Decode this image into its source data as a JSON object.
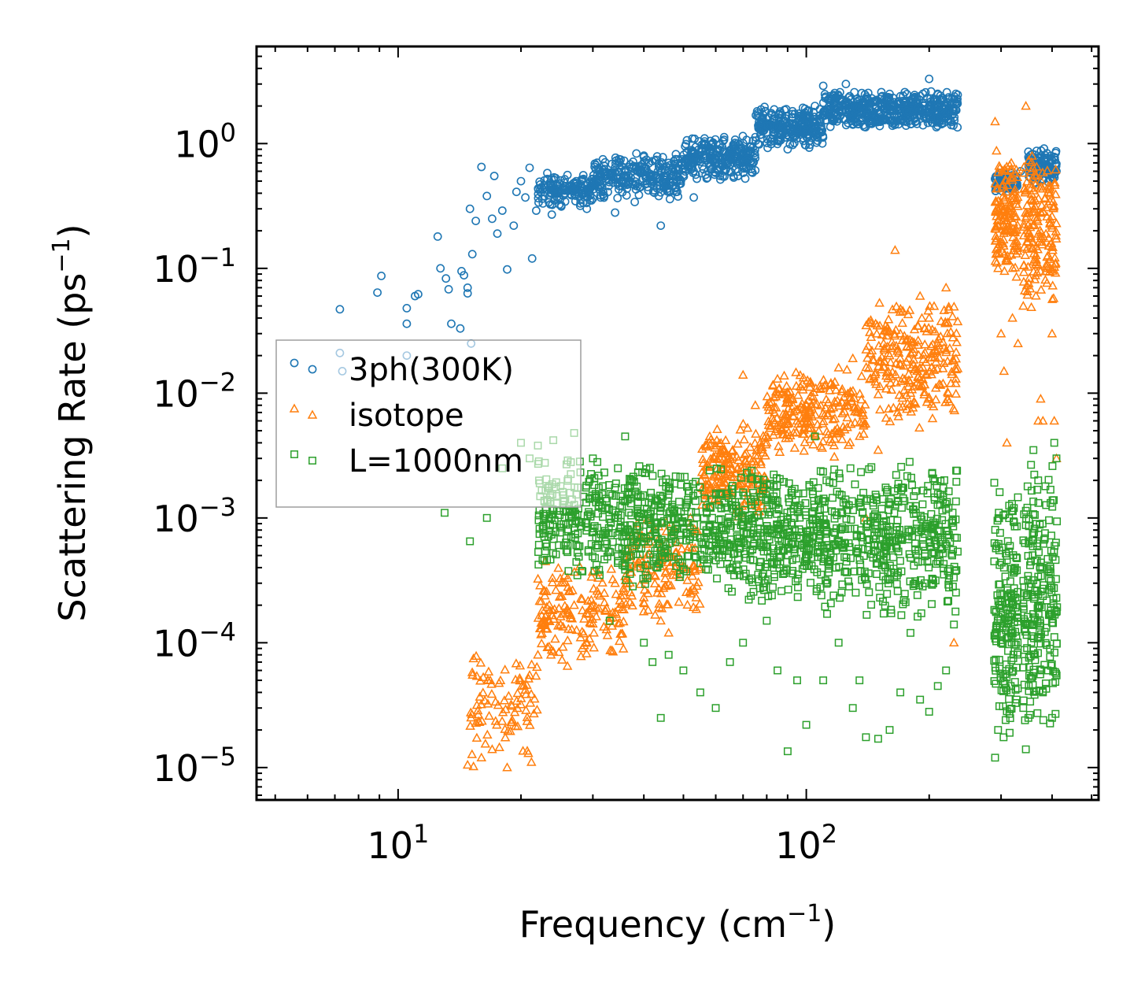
{
  "chart_data": {
    "type": "scatter",
    "title": "",
    "xlabel": {
      "text": "Frequency (cm",
      "sup": "−1",
      "tail": ")"
    },
    "ylabel": {
      "text": "Scattering Rate (ps",
      "sup": "−1",
      "tail": ")"
    },
    "xscale": "log",
    "yscale": "log",
    "xlim": [
      4.5,
      520
    ],
    "ylim": [
      5.5e-06,
      6.0
    ],
    "xticks": [
      {
        "value": 10,
        "base": "10",
        "exp": "1"
      },
      {
        "value": 100,
        "base": "10",
        "exp": "2"
      }
    ],
    "yticks": [
      {
        "value": 1e-05,
        "base": "10",
        "exp": "−5"
      },
      {
        "value": 0.0001,
        "base": "10",
        "exp": "−4"
      },
      {
        "value": 0.001,
        "base": "10",
        "exp": "−3"
      },
      {
        "value": 0.01,
        "base": "10",
        "exp": "−2"
      },
      {
        "value": 0.1,
        "base": "10",
        "exp": "−1"
      },
      {
        "value": 1,
        "base": "10",
        "exp": "0"
      }
    ],
    "legend": {
      "position": "center-left"
    },
    "series": [
      {
        "name": "3ph(300K)",
        "marker": "circle",
        "color": "#1f77b4",
        "points": [
          [
            7.2,
            0.047
          ],
          [
            7.2,
            0.021
          ],
          [
            7.3,
            0.015
          ],
          [
            8.9,
            0.064
          ],
          [
            9.1,
            0.087
          ],
          [
            10.5,
            0.048
          ],
          [
            10.5,
            0.036
          ],
          [
            10.5,
            0.02
          ],
          [
            11.2,
            0.062
          ],
          [
            11.0,
            0.06
          ],
          [
            12.5,
            0.18
          ],
          [
            12.7,
            0.1
          ],
          [
            13.1,
            0.083
          ],
          [
            13.3,
            0.068
          ],
          [
            13.5,
            0.036
          ],
          [
            14.3,
            0.095
          ],
          [
            14.5,
            0.088
          ],
          [
            14.8,
            0.07
          ],
          [
            14.2,
            0.033
          ],
          [
            15.0,
            0.3
          ],
          [
            15.2,
            0.13
          ],
          [
            14.8,
            0.063
          ],
          [
            15.1,
            0.025
          ],
          [
            15.5,
            0.24
          ],
          [
            16.0,
            0.65
          ],
          [
            16.5,
            0.38
          ],
          [
            17.0,
            0.25
          ],
          [
            17.2,
            0.55
          ],
          [
            17.5,
            0.19
          ],
          [
            18.0,
            0.29
          ],
          [
            18.5,
            0.098
          ],
          [
            19.2,
            0.22
          ],
          [
            19.5,
            0.41
          ],
          [
            20.0,
            0.5
          ],
          [
            20.5,
            0.37
          ],
          [
            21.0,
            0.64
          ],
          [
            21.3,
            0.12
          ],
          [
            21.8,
            0.29
          ],
          [
            22.3,
            0.47
          ],
          [
            22.8,
            0.38
          ],
          [
            23.2,
            0.58
          ],
          [
            23.8,
            0.27
          ],
          [
            24.5,
            0.47
          ],
          [
            25.1,
            0.32
          ],
          [
            26.0,
            0.56
          ],
          [
            27.5,
            0.44
          ],
          [
            29.0,
            0.3
          ],
          [
            30.5,
            0.62
          ],
          [
            32.0,
            0.38
          ],
          [
            34.0,
            0.28
          ],
          [
            36.0,
            0.55
          ],
          [
            38.0,
            0.34
          ],
          [
            40.0,
            0.8
          ],
          [
            42.0,
            0.5
          ],
          [
            44.0,
            0.22
          ],
          [
            46.0,
            0.7
          ],
          [
            48.0,
            0.44
          ],
          [
            50.0,
            0.63
          ],
          [
            53.0,
            0.37
          ],
          [
            56.0,
            0.62
          ],
          [
            59.0,
            1.0
          ],
          [
            62.0,
            0.7
          ],
          [
            65.0,
            0.81
          ],
          [
            68.0,
            0.55
          ],
          [
            71.0,
            0.78
          ],
          [
            75.0,
            0.61
          ],
          [
            78.0,
            1.1
          ],
          [
            82.0,
            0.99
          ],
          [
            86.0,
            1.23
          ],
          [
            90.0,
            0.9
          ],
          [
            95.0,
            1.32
          ],
          [
            100.0,
            1.5
          ],
          [
            105.0,
            2.0
          ],
          [
            110.0,
            2.9
          ],
          [
            115.0,
            2.3
          ],
          [
            120.0,
            2.4
          ],
          [
            125.0,
            3.0
          ],
          [
            130.0,
            2.0
          ],
          [
            140.0,
            1.7
          ],
          [
            150.0,
            1.85
          ],
          [
            160.0,
            2.5
          ],
          [
            170.0,
            2.1
          ],
          [
            180.0,
            1.8
          ],
          [
            190.0,
            2.4
          ],
          [
            200.0,
            3.3
          ],
          [
            210.0,
            1.6
          ],
          [
            220.0,
            2.0
          ],
          [
            230.0,
            1.85
          ],
          [
            290.0,
            0.52
          ],
          [
            300.0,
            0.52
          ],
          [
            310.0,
            0.55
          ],
          [
            325.0,
            0.48
          ],
          [
            335.0,
            0.6
          ],
          [
            350.0,
            0.86
          ],
          [
            365.0,
            0.7
          ],
          [
            380.0,
            0.52
          ],
          [
            395.0,
            0.62
          ],
          [
            410.0,
            0.6
          ]
        ],
        "bands": [
          {
            "x": [
              22,
              30
            ],
            "y": [
              0.3,
              0.6
            ],
            "n": 140
          },
          {
            "x": [
              30,
              50
            ],
            "y": [
              0.35,
              0.85
            ],
            "n": 260
          },
          {
            "x": [
              50,
              75
            ],
            "y": [
              0.5,
              1.2
            ],
            "n": 240
          },
          {
            "x": [
              75,
              110
            ],
            "y": [
              0.9,
              2.0
            ],
            "n": 260
          },
          {
            "x": [
              110,
              160
            ],
            "y": [
              1.3,
              2.7
            ],
            "n": 260
          },
          {
            "x": [
              160,
              235
            ],
            "y": [
              1.3,
              2.7
            ],
            "n": 260
          },
          {
            "x": [
              290,
              330
            ],
            "y": [
              0.4,
              0.6
            ],
            "n": 90
          },
          {
            "x": [
              350,
              410
            ],
            "y": [
              0.45,
              0.95
            ],
            "n": 110
          }
        ]
      },
      {
        "name": "isotope",
        "marker": "triangle",
        "color": "#ff7f0e",
        "points": [
          [
            14.8,
            1.05e-05
          ],
          [
            15.3,
            1.02e-05
          ],
          [
            16.0,
            1.2e-05
          ],
          [
            17.0,
            1.4e-05
          ],
          [
            18.5,
            1e-05
          ],
          [
            19.0,
            2.3e-05
          ],
          [
            20.0,
            3.2e-05
          ],
          [
            21.0,
            5.5e-05
          ],
          [
            22.0,
            8e-05
          ],
          [
            23.0,
            0.00013
          ],
          [
            24.0,
            8.5e-05
          ],
          [
            25.0,
            0.00014
          ],
          [
            26.0,
            6.5e-05
          ],
          [
            27.0,
            0.0002
          ],
          [
            28.0,
            0.00011
          ],
          [
            30.0,
            0.0002
          ],
          [
            32.0,
            0.00025
          ],
          [
            34.0,
            0.0003
          ],
          [
            36.0,
            0.00048
          ],
          [
            40.0,
            0.00023
          ],
          [
            44.0,
            0.00015
          ],
          [
            46.0,
            0.00012
          ],
          [
            48.0,
            0.00035
          ],
          [
            52.0,
            0.001
          ],
          [
            55.0,
            0.0004
          ],
          [
            58.0,
            0.0045
          ],
          [
            62.0,
            0.0025
          ],
          [
            66.0,
            0.0035
          ],
          [
            70.0,
            0.014
          ],
          [
            75.0,
            0.008
          ],
          [
            80.0,
            0.004
          ],
          [
            85.0,
            0.013
          ],
          [
            90.0,
            0.009
          ],
          [
            95.0,
            0.006
          ],
          [
            100.0,
            0.008
          ],
          [
            110.0,
            0.011
          ],
          [
            120.0,
            0.016
          ],
          [
            130.0,
            0.019
          ],
          [
            140.0,
            0.001
          ],
          [
            150.0,
            0.0035
          ],
          [
            160.0,
            0.02
          ],
          [
            165.0,
            0.14
          ],
          [
            170.0,
            0.03
          ],
          [
            180.0,
            0.01
          ],
          [
            190.0,
            0.06
          ],
          [
            200.0,
            0.04
          ],
          [
            210.0,
            0.025
          ],
          [
            220.0,
            0.07
          ],
          [
            230.0,
            0.0001
          ],
          [
            290.0,
            1.5
          ],
          [
            295.0,
            0.1
          ],
          [
            300.0,
            0.03
          ],
          [
            305.0,
            0.015
          ],
          [
            310.0,
            0.004
          ],
          [
            320.0,
            0.04
          ],
          [
            330.0,
            0.025
          ],
          [
            340.0,
            0.05
          ],
          [
            345.0,
            2.0
          ],
          [
            355.0,
            0.6
          ],
          [
            360.0,
            0.3
          ],
          [
            370.0,
            0.006
          ],
          [
            375.0,
            0.009
          ],
          [
            380.0,
            0.006
          ],
          [
            390.0,
            0.1
          ],
          [
            400.0,
            0.03
          ],
          [
            405.0,
            0.006
          ],
          [
            410.0,
            0.003
          ]
        ],
        "bands": [
          {
            "x": [
              15,
              22
            ],
            "y": [
              1e-05,
              0.0001
            ],
            "n": 90
          },
          {
            "x": [
              22,
              36
            ],
            "y": [
              6e-05,
              0.0005
            ],
            "n": 160
          },
          {
            "x": [
              36,
              55
            ],
            "y": [
              0.00015,
              0.001
            ],
            "n": 140
          },
          {
            "x": [
              55,
              80
            ],
            "y": [
              0.001,
              0.006
            ],
            "n": 200
          },
          {
            "x": [
              80,
              140
            ],
            "y": [
              0.003,
              0.016
            ],
            "n": 240
          },
          {
            "x": [
              140,
              235
            ],
            "y": [
              0.005,
              0.06
            ],
            "n": 260
          },
          {
            "x": [
              290,
              330
            ],
            "y": [
              0.08,
              0.9
            ],
            "n": 140
          },
          {
            "x": [
              340,
              410
            ],
            "y": [
              0.04,
              0.9
            ],
            "n": 170
          }
        ]
      },
      {
        "name": "L=1000nm",
        "marker": "square",
        "color": "#2ca02c",
        "points": [
          [
            13.0,
            0.0011
          ],
          [
            15.0,
            0.00065
          ],
          [
            16.5,
            0.001
          ],
          [
            18.0,
            0.0025
          ],
          [
            20.0,
            0.004
          ],
          [
            21.0,
            0.003
          ],
          [
            22.0,
            0.0038
          ],
          [
            24.0,
            0.0042
          ],
          [
            25.0,
            0.0018
          ],
          [
            27.0,
            0.0048
          ],
          [
            30.0,
            0.003
          ],
          [
            33.0,
            0.00015
          ],
          [
            36.0,
            0.0045
          ],
          [
            40.0,
            0.0001
          ],
          [
            42.0,
            7e-05
          ],
          [
            44.0,
            2.5e-05
          ],
          [
            46.0,
            8e-05
          ],
          [
            50.0,
            6e-05
          ],
          [
            55.0,
            4e-05
          ],
          [
            60.0,
            3e-05
          ],
          [
            65.0,
            7e-05
          ],
          [
            70.0,
            0.0001
          ],
          [
            80.0,
            0.00015
          ],
          [
            85.0,
            6e-05
          ],
          [
            90.0,
            1.35e-05
          ],
          [
            95.0,
            5e-05
          ],
          [
            100.0,
            2.2e-05
          ],
          [
            105.0,
            0.0045
          ],
          [
            110.0,
            5e-05
          ],
          [
            120.0,
            0.0001
          ],
          [
            130.0,
            3e-05
          ],
          [
            135.0,
            5e-05
          ],
          [
            140.0,
            1.75e-05
          ],
          [
            150.0,
            1.7e-05
          ],
          [
            160.0,
            2e-05
          ],
          [
            170.0,
            4e-05
          ],
          [
            180.0,
            0.00012
          ],
          [
            190.0,
            3.5e-05
          ],
          [
            200.0,
            2.8e-05
          ],
          [
            210.0,
            4.5e-05
          ],
          [
            220.0,
            6e-05
          ],
          [
            230.0,
            0.00014
          ],
          [
            290.0,
            1.2e-05
          ],
          [
            295.0,
            2e-05
          ],
          [
            300.0,
            0.0001
          ],
          [
            305.0,
            0.0004
          ],
          [
            320.0,
            0.0002
          ],
          [
            340.0,
            3e-05
          ],
          [
            345.0,
            1.4e-05
          ],
          [
            350.0,
            2.5e-05
          ],
          [
            360.0,
            0.0035
          ],
          [
            370.0,
            0.002
          ],
          [
            380.0,
            4e-05
          ],
          [
            390.0,
            6e-05
          ],
          [
            400.0,
            2.5e-05
          ],
          [
            405.0,
            0.004
          ],
          [
            410.0,
            0.003
          ]
        ],
        "bands": [
          {
            "x": [
              22,
              32
            ],
            "y": [
              0.0003,
              0.0035
            ],
            "n": 200
          },
          {
            "x": [
              32,
              60
            ],
            "y": [
              0.00025,
              0.003
            ],
            "n": 340
          },
          {
            "x": [
              60,
              110
            ],
            "y": [
              0.0002,
              0.003
            ],
            "n": 420
          },
          {
            "x": [
              110,
              235
            ],
            "y": [
              0.00015,
              0.003
            ],
            "n": 460
          },
          {
            "x": [
              288,
              330
            ],
            "y": [
              1.5e-05,
              0.0025
            ],
            "n": 180
          },
          {
            "x": [
              340,
              412
            ],
            "y": [
              1.5e-05,
              0.003
            ],
            "n": 220
          }
        ]
      }
    ]
  }
}
